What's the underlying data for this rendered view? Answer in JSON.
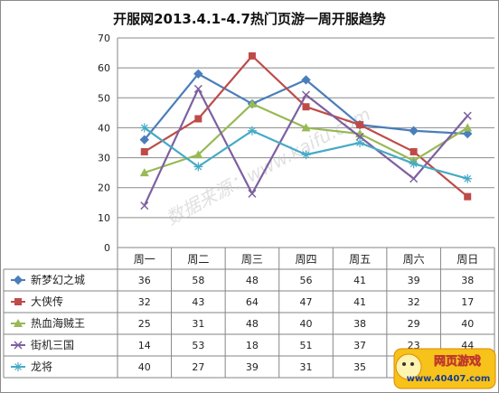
{
  "chart_data": {
    "type": "line",
    "title": "开服网2013.4.1-4.7热门页游一周开服趋势",
    "categories": [
      "周一",
      "周二",
      "周三",
      "周四",
      "周五",
      "周六",
      "周日"
    ],
    "ylim": [
      0,
      70
    ],
    "yticks": [
      0,
      10,
      20,
      30,
      40,
      50,
      60,
      70
    ],
    "grid": true,
    "legend_position": "data-table-left",
    "series": [
      {
        "name": "新梦幻之城",
        "values": [
          36,
          58,
          48,
          56,
          41,
          39,
          38
        ],
        "color": "#4a7ebb",
        "marker": "diamond"
      },
      {
        "name": "大侠传",
        "values": [
          32,
          43,
          64,
          47,
          41,
          32,
          17
        ],
        "color": "#be4b48",
        "marker": "square"
      },
      {
        "name": "热血海贼王",
        "values": [
          25,
          31,
          48,
          40,
          38,
          29,
          40
        ],
        "color": "#98b954",
        "marker": "triangle"
      },
      {
        "name": "街机三国",
        "values": [
          14,
          53,
          18,
          51,
          37,
          23,
          44
        ],
        "color": "#7d60a0",
        "marker": "x"
      },
      {
        "name": "龙将",
        "values": [
          40,
          27,
          39,
          31,
          35,
          28,
          23
        ],
        "color": "#46aac5",
        "marker": "star"
      }
    ],
    "table_visible": [
      [
        "36",
        "58",
        "48",
        "56",
        "41",
        "39",
        "38"
      ],
      [
        "32",
        "43",
        "64",
        "47",
        "41",
        "32",
        "17"
      ],
      [
        "25",
        "31",
        "48",
        "40",
        "38",
        "29",
        "40"
      ],
      [
        "14",
        "53",
        "18",
        "51",
        "37",
        "23",
        "44"
      ],
      [
        "40",
        "27",
        "39",
        "31",
        "35",
        "",
        ""
      ]
    ]
  },
  "watermark": "数据来源：www.kaifu.com",
  "badge": {
    "title": "网页游戏",
    "url": "www.40407.com"
  }
}
